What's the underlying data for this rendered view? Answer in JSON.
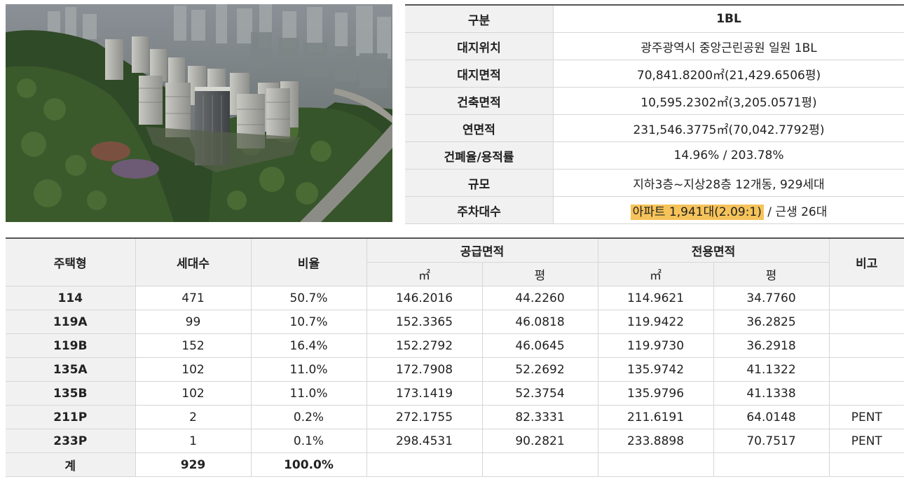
{
  "info": {
    "rows": [
      {
        "key": "구분",
        "value": "1BL"
      },
      {
        "key": "대지위치",
        "value": "광주광역시 중앙근린공원 일원 1BL"
      },
      {
        "key": "대지면적",
        "value": "70,841.8200㎡(21,429.6506평)"
      },
      {
        "key": "건축면적",
        "value": "10,595.2302㎡(3,205.0571평)"
      },
      {
        "key": "연면적",
        "value": "231,546.3775㎡(70,042.7792평)"
      },
      {
        "key": "건폐율/용적률",
        "value": "14.96% / 203.78%"
      },
      {
        "key": "규모",
        "value": "지하3층~지상28층 12개동, 929세대"
      }
    ],
    "parking": {
      "key": "주차대수",
      "highlight": "아파트 1,941대(2.09:1)",
      "rest": " / 근생 26대"
    },
    "highlight_color": "#f6c35a"
  },
  "units": {
    "headers": {
      "type": "주택형",
      "households": "세대수",
      "ratio": "비율",
      "supply": "공급면적",
      "exclusive": "전용면적",
      "note": "비고",
      "unit_m2": "㎡",
      "unit_pyeong": "평"
    },
    "rows": [
      {
        "type": "114",
        "households": "471",
        "ratio": "50.7%",
        "supply_m2": "146.2016",
        "supply_py": "44.2260",
        "excl_m2": "114.9621",
        "excl_py": "34.7760",
        "note": ""
      },
      {
        "type": "119A",
        "households": "99",
        "ratio": "10.7%",
        "supply_m2": "152.3365",
        "supply_py": "46.0818",
        "excl_m2": "119.9422",
        "excl_py": "36.2825",
        "note": ""
      },
      {
        "type": "119B",
        "households": "152",
        "ratio": "16.4%",
        "supply_m2": "152.2792",
        "supply_py": "46.0645",
        "excl_m2": "119.9730",
        "excl_py": "36.2918",
        "note": ""
      },
      {
        "type": "135A",
        "households": "102",
        "ratio": "11.0%",
        "supply_m2": "172.7908",
        "supply_py": "52.2692",
        "excl_m2": "135.9742",
        "excl_py": "41.1322",
        "note": ""
      },
      {
        "type": "135B",
        "households": "102",
        "ratio": "11.0%",
        "supply_m2": "173.1419",
        "supply_py": "52.3754",
        "excl_m2": "135.9796",
        "excl_py": "41.1338",
        "note": ""
      },
      {
        "type": "211P",
        "households": "2",
        "ratio": "0.2%",
        "supply_m2": "272.1755",
        "supply_py": "82.3331",
        "excl_m2": "211.6191",
        "excl_py": "64.0148",
        "note": "PENT"
      },
      {
        "type": "233P",
        "households": "1",
        "ratio": "0.1%",
        "supply_m2": "298.4531",
        "supply_py": "90.2821",
        "excl_m2": "233.8898",
        "excl_py": "70.7517",
        "note": "PENT"
      }
    ],
    "total": {
      "type": "계",
      "households": "929",
      "ratio": "100.0%"
    }
  }
}
